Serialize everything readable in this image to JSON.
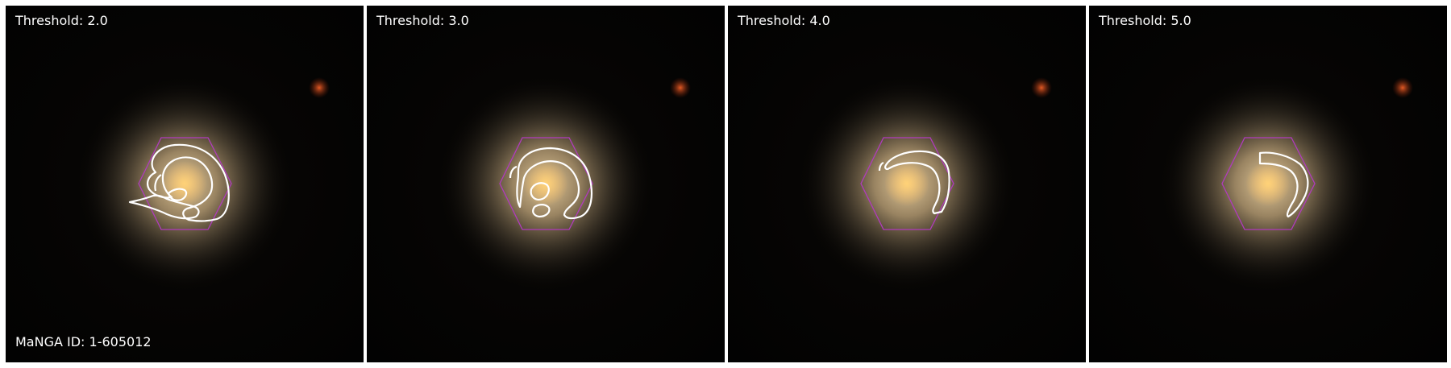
{
  "manga_id": "MaNGA ID: 1-605012",
  "panels": [
    {
      "threshold_label": "Threshold: 2.0"
    },
    {
      "threshold_label": "Threshold: 3.0"
    },
    {
      "threshold_label": "Threshold: 4.0"
    },
    {
      "threshold_label": "Threshold: 5.0"
    }
  ],
  "colors": {
    "hexagon": "#b03bbd",
    "contour": "#ffffff",
    "galaxy_core": "#ffc766",
    "companion": "#c8491e"
  }
}
